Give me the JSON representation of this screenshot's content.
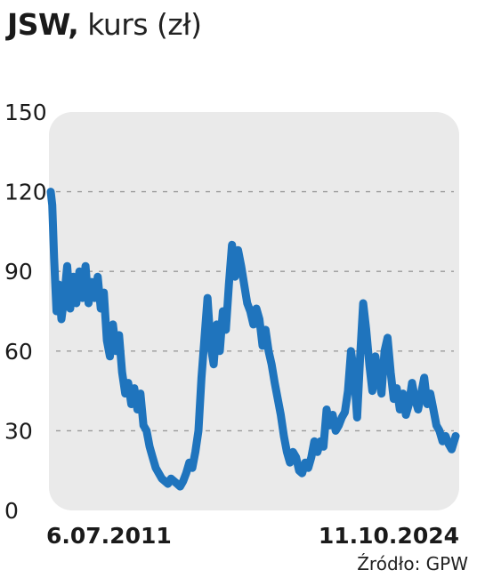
{
  "header": {
    "title_bold": "JSW,",
    "title_rest": "kurs (zł)"
  },
  "source": "Źródło: GPW",
  "chart_data": {
    "type": "line",
    "title": "JSW, kurs (zł)",
    "ylabel": "zł",
    "ylim": [
      0,
      150
    ],
    "yticks": [
      0,
      30,
      60,
      90,
      120,
      150
    ],
    "ytick_labels": [
      "0",
      "30",
      "60",
      "90",
      "120",
      "150"
    ],
    "x_start_label": "6.07.2011",
    "x_end_label": "11.10.2024",
    "grid": true,
    "line_color": "#1f74bd",
    "panel_color": "#eaeaea",
    "series": [
      {
        "x": [
          2011.51,
          2011.56,
          2011.62,
          2011.7,
          2011.78,
          2011.86,
          2011.95,
          2012.05,
          2012.15,
          2012.25,
          2012.35,
          2012.45,
          2012.55,
          2012.65,
          2012.75,
          2012.85,
          2012.95,
          2013.05,
          2013.15,
          2013.25,
          2013.35,
          2013.45,
          2013.55,
          2013.65,
          2013.75,
          2013.85,
          2013.95,
          2014.05,
          2014.15,
          2014.25,
          2014.35,
          2014.45,
          2014.55,
          2014.65,
          2014.75,
          2014.85,
          2014.95,
          2015.05,
          2015.15,
          2015.25,
          2015.35,
          2015.45,
          2015.55,
          2015.65,
          2015.75,
          2015.85,
          2015.95,
          2016.05,
          2016.15,
          2016.25,
          2016.35,
          2016.45,
          2016.55,
          2016.65,
          2016.75,
          2016.85,
          2016.95,
          2017.05,
          2017.15,
          2017.25,
          2017.35,
          2017.45,
          2017.55,
          2017.65,
          2017.75,
          2017.85,
          2017.95,
          2018.05,
          2018.15,
          2018.25,
          2018.35,
          2018.45,
          2018.55,
          2018.65,
          2018.75,
          2018.85,
          2018.95,
          2019.05,
          2019.15,
          2019.25,
          2019.35,
          2019.45,
          2019.55,
          2019.65,
          2019.75,
          2019.85,
          2019.95,
          2020.05,
          2020.15,
          2020.25,
          2020.35,
          2020.45,
          2020.55,
          2020.65,
          2020.75,
          2020.85,
          2020.95,
          2021.05,
          2021.15,
          2021.25,
          2021.35,
          2021.45,
          2021.55,
          2021.65,
          2021.75,
          2021.85,
          2021.95,
          2022.05,
          2022.15,
          2022.25,
          2022.35,
          2022.45,
          2022.55,
          2022.65,
          2022.75,
          2022.85,
          2022.95,
          2023.05,
          2023.15,
          2023.25,
          2023.35,
          2023.45,
          2023.55,
          2023.65,
          2023.75,
          2023.85,
          2023.95,
          2024.05,
          2024.15,
          2024.25,
          2024.35,
          2024.45,
          2024.55,
          2024.65,
          2024.78
        ],
        "y": [
          120,
          115,
          95,
          75,
          85,
          72,
          80,
          92,
          76,
          88,
          78,
          90,
          80,
          92,
          78,
          86,
          80,
          88,
          76,
          82,
          64,
          58,
          70,
          60,
          66,
          52,
          44,
          48,
          40,
          46,
          38,
          44,
          32,
          30,
          24,
          20,
          16,
          14,
          12,
          11,
          10,
          12,
          11,
          10,
          9,
          11,
          14,
          18,
          16,
          22,
          30,
          50,
          65,
          80,
          62,
          55,
          70,
          60,
          75,
          68,
          85,
          100,
          88,
          98,
          92,
          85,
          78,
          75,
          70,
          76,
          72,
          62,
          68,
          60,
          55,
          48,
          42,
          36,
          28,
          22,
          18,
          22,
          20,
          15,
          14,
          18,
          16,
          20,
          26,
          22,
          26,
          24,
          38,
          32,
          36,
          30,
          32,
          35,
          37,
          45,
          60,
          52,
          35,
          58,
          78,
          68,
          55,
          45,
          58,
          50,
          44,
          60,
          65,
          52,
          42,
          46,
          38,
          44,
          36,
          40,
          48,
          42,
          38,
          44,
          50,
          40,
          44,
          38,
          32,
          30,
          26,
          28,
          25,
          23,
          28
        ]
      }
    ]
  }
}
